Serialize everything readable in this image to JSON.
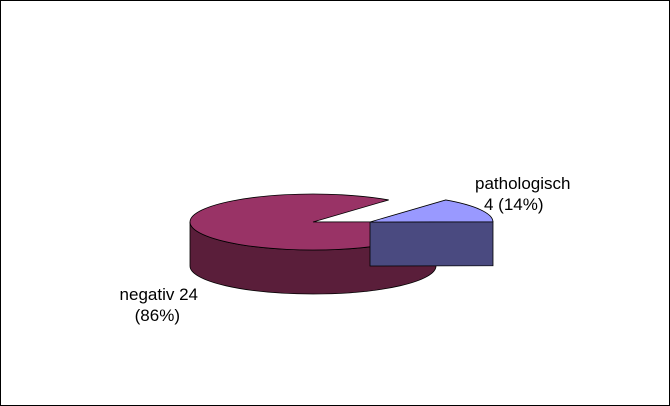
{
  "chart_data": {
    "type": "pie",
    "style": "3d-exploded",
    "slices": [
      {
        "category": "pathologisch",
        "value": 4,
        "percent": "14%",
        "label_lines": [
          "pathologisch",
          "4 (14%)"
        ],
        "color_top": "#9999ff",
        "color_side": "#4a4a80"
      },
      {
        "category": "negativ",
        "value": 24,
        "percent": "86%",
        "label_lines": [
          "negativ 24",
          "(86%)"
        ],
        "color_top": "#993366",
        "color_side": "#5a1e3a"
      }
    ]
  }
}
